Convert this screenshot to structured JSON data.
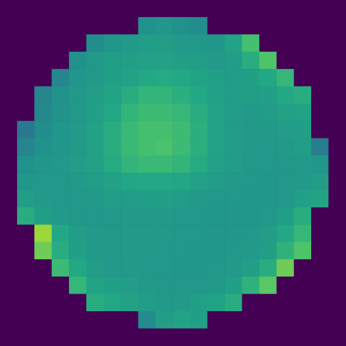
{
  "chart_data": {
    "type": "heatmap",
    "color": "viridis",
    "color_range": [
      0,
      1
    ],
    "tick_labels": false,
    "cells": [
      [
        0,
        0,
        0,
        0,
        0,
        0,
        0,
        0,
        0,
        0,
        0,
        0,
        0,
        0,
        0,
        0,
        0,
        0,
        0,
        0
      ],
      [
        0,
        0,
        0,
        0,
        0,
        0,
        0,
        0,
        0.5,
        0.52,
        0.5,
        0.48,
        0,
        0,
        0,
        0,
        0,
        0,
        0,
        0
      ],
      [
        0,
        0,
        0,
        0,
        0,
        0.48,
        0.52,
        0.54,
        0.55,
        0.55,
        0.54,
        0.53,
        0.52,
        0.58,
        0.7,
        0,
        0,
        0,
        0,
        0
      ],
      [
        0,
        0,
        0,
        0,
        0.5,
        0.53,
        0.55,
        0.56,
        0.57,
        0.57,
        0.56,
        0.55,
        0.54,
        0.55,
        0.62,
        0.72,
        0,
        0,
        0,
        0
      ],
      [
        0,
        0,
        0,
        0.46,
        0.52,
        0.54,
        0.56,
        0.58,
        0.6,
        0.61,
        0.6,
        0.58,
        0.56,
        0.55,
        0.56,
        0.6,
        0.66,
        0,
        0,
        0
      ],
      [
        0,
        0,
        0.45,
        0.5,
        0.53,
        0.55,
        0.58,
        0.62,
        0.65,
        0.65,
        0.63,
        0.6,
        0.57,
        0.55,
        0.55,
        0.56,
        0.6,
        0.62,
        0,
        0
      ],
      [
        0,
        0,
        0.47,
        0.51,
        0.53,
        0.56,
        0.6,
        0.65,
        0.68,
        0.68,
        0.66,
        0.62,
        0.58,
        0.55,
        0.54,
        0.55,
        0.57,
        0.58,
        0,
        0
      ],
      [
        0,
        0.4,
        0.48,
        0.52,
        0.54,
        0.57,
        0.62,
        0.67,
        0.7,
        0.7,
        0.68,
        0.63,
        0.58,
        0.55,
        0.54,
        0.54,
        0.55,
        0.56,
        0,
        0
      ],
      [
        0,
        0.45,
        0.5,
        0.52,
        0.54,
        0.57,
        0.62,
        0.67,
        0.7,
        0.71,
        0.68,
        0.63,
        0.58,
        0.55,
        0.54,
        0.53,
        0.54,
        0.55,
        0.42,
        0
      ],
      [
        0,
        0.5,
        0.52,
        0.53,
        0.55,
        0.57,
        0.61,
        0.65,
        0.67,
        0.67,
        0.65,
        0.61,
        0.57,
        0.55,
        0.53,
        0.53,
        0.53,
        0.54,
        0.52,
        0
      ],
      [
        0,
        0.52,
        0.53,
        0.53,
        0.54,
        0.55,
        0.57,
        0.59,
        0.6,
        0.6,
        0.59,
        0.57,
        0.55,
        0.54,
        0.53,
        0.52,
        0.53,
        0.54,
        0.55,
        0
      ],
      [
        0,
        0.55,
        0.54,
        0.53,
        0.53,
        0.54,
        0.55,
        0.55,
        0.56,
        0.56,
        0.55,
        0.54,
        0.53,
        0.53,
        0.52,
        0.52,
        0.53,
        0.56,
        0.58,
        0
      ],
      [
        0,
        0.62,
        0.56,
        0.54,
        0.53,
        0.53,
        0.53,
        0.54,
        0.54,
        0.54,
        0.53,
        0.53,
        0.52,
        0.52,
        0.52,
        0.53,
        0.56,
        0.62,
        0,
        0
      ],
      [
        0,
        0,
        0.85,
        0.6,
        0.55,
        0.54,
        0.53,
        0.54,
        0.54,
        0.54,
        0.53,
        0.53,
        0.52,
        0.52,
        0.53,
        0.55,
        0.6,
        0.66,
        0,
        0
      ],
      [
        0,
        0,
        0.78,
        0.62,
        0.56,
        0.54,
        0.53,
        0.54,
        0.54,
        0.53,
        0.53,
        0.52,
        0.52,
        0.53,
        0.54,
        0.56,
        0.64,
        0.72,
        0,
        0
      ],
      [
        0,
        0,
        0,
        0.68,
        0.6,
        0.55,
        0.54,
        0.54,
        0.53,
        0.53,
        0.52,
        0.52,
        0.53,
        0.54,
        0.56,
        0.62,
        0.78,
        0,
        0,
        0
      ],
      [
        0,
        0,
        0,
        0,
        0.66,
        0.58,
        0.56,
        0.55,
        0.54,
        0.53,
        0.53,
        0.53,
        0.54,
        0.56,
        0.64,
        0.74,
        0,
        0,
        0,
        0
      ],
      [
        0,
        0,
        0,
        0,
        0,
        0.62,
        0.6,
        0.57,
        0.55,
        0.54,
        0.54,
        0.56,
        0.58,
        0.62,
        0,
        0,
        0,
        0,
        0,
        0
      ],
      [
        0,
        0,
        0,
        0,
        0,
        0,
        0,
        0,
        0.48,
        0.55,
        0.58,
        0.56,
        0,
        0,
        0,
        0,
        0,
        0,
        0,
        0
      ],
      [
        0,
        0,
        0,
        0,
        0,
        0,
        0,
        0,
        0,
        0,
        0,
        0,
        0,
        0,
        0,
        0,
        0,
        0,
        0,
        0
      ]
    ]
  }
}
